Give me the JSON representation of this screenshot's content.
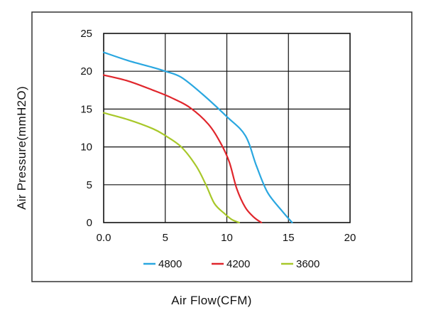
{
  "chart_data": {
    "type": "line",
    "xlabel": "Air Flow(CFM)",
    "ylabel": "Air Pressure(mmH2O)",
    "xlim": [
      0,
      20
    ],
    "ylim": [
      0,
      25
    ],
    "x_ticks": [
      "0.0",
      "5",
      "10",
      "15",
      "20"
    ],
    "y_ticks": [
      "0",
      "5",
      "10",
      "15",
      "20",
      "25"
    ],
    "grid": true,
    "legend_position": "bottom",
    "series": [
      {
        "name": "4800",
        "color": "#2aa7e0",
        "x": [
          0,
          2,
          4,
          5,
          6.3,
          8,
          10,
          11.5,
          12.4,
          13.3,
          14.5,
          15.3
        ],
        "y": [
          22.5,
          21.4,
          20.5,
          20,
          19.2,
          17,
          14,
          11.5,
          7.5,
          4,
          1.5,
          0
        ]
      },
      {
        "name": "4200",
        "color": "#e0262c",
        "x": [
          0,
          2,
          4,
          5.5,
          7,
          8.5,
          9.5,
          10.2,
          10.8,
          11.5,
          12.2,
          12.8
        ],
        "y": [
          19.5,
          18.7,
          17.5,
          16.5,
          15.2,
          13,
          10.5,
          8,
          4.5,
          2,
          0.7,
          0
        ]
      },
      {
        "name": "3600",
        "color": "#a8c82a",
        "x": [
          0,
          2,
          4,
          5,
          6.3,
          7.5,
          8.3,
          9,
          9.8,
          10.4,
          11
        ],
        "y": [
          14.5,
          13.6,
          12.4,
          11.5,
          10,
          7.5,
          5,
          2.5,
          1.2,
          0.4,
          0
        ]
      }
    ]
  }
}
